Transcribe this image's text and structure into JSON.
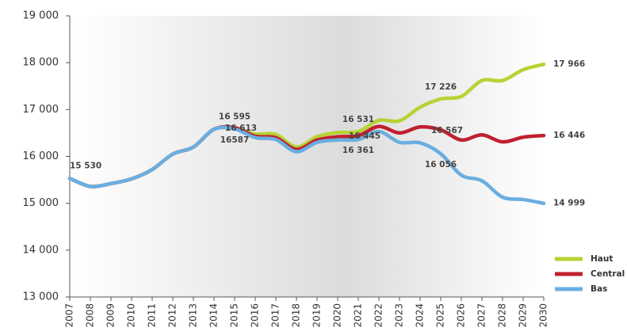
{
  "chart_data": {
    "type": "line",
    "categories": [
      "2007",
      "2008",
      "2009",
      "2010",
      "2011",
      "2012",
      "2013",
      "2014",
      "2015",
      "2016",
      "2017",
      "2018",
      "2019",
      "2020",
      "2021",
      "2022",
      "2023",
      "2024",
      "2025",
      "2026",
      "2027",
      "2028",
      "2029",
      "2030"
    ],
    "ylim": [
      13000,
      19000
    ],
    "yticks": [
      {
        "value": 13000,
        "label": "13 000"
      },
      {
        "value": 14000,
        "label": "14 000"
      },
      {
        "value": 15000,
        "label": "15 000"
      },
      {
        "value": 16000,
        "label": "16 000"
      },
      {
        "value": 17000,
        "label": "17 000"
      },
      {
        "value": 18000,
        "label": "18 000"
      },
      {
        "value": 19000,
        "label": "19 000"
      }
    ],
    "series": [
      {
        "name": "Haut",
        "color": "#b5d334",
        "values": [
          15530,
          15360,
          15420,
          15520,
          15720,
          16050,
          16200,
          16580,
          16595,
          16480,
          16470,
          16200,
          16420,
          16510,
          16531,
          16770,
          16760,
          17050,
          17226,
          17280,
          17620,
          17620,
          17850,
          17966
        ],
        "value_labels": [
          "15 530",
          null,
          null,
          null,
          null,
          null,
          null,
          null,
          "16 595",
          null,
          null,
          null,
          null,
          null,
          "16 531",
          null,
          null,
          null,
          "17 226",
          null,
          null,
          null,
          null,
          "17 966"
        ]
      },
      {
        "name": "Central",
        "color": "#c0202f",
        "values": [
          15530,
          15360,
          15420,
          15520,
          15720,
          16050,
          16200,
          16580,
          16613,
          16430,
          16400,
          16150,
          16350,
          16420,
          16445,
          16640,
          16500,
          16630,
          16567,
          16350,
          16460,
          16310,
          16410,
          16446
        ],
        "value_labels": [
          null,
          null,
          null,
          null,
          null,
          null,
          null,
          null,
          "16 613",
          null,
          null,
          null,
          null,
          null,
          "16 445",
          null,
          null,
          null,
          "16 567",
          null,
          null,
          null,
          null,
          "16 446"
        ]
      },
      {
        "name": "Bas",
        "color": "#6aaee0",
        "values": [
          15530,
          15360,
          15420,
          15520,
          15720,
          16050,
          16200,
          16580,
          16587,
          16400,
          16360,
          16100,
          16300,
          16350,
          16361,
          16530,
          16300,
          16290,
          16056,
          15600,
          15480,
          15130,
          15080,
          14999
        ],
        "value_labels": [
          null,
          null,
          null,
          null,
          null,
          null,
          null,
          null,
          "16587",
          null,
          null,
          null,
          null,
          null,
          "16 361",
          null,
          null,
          null,
          "16 056",
          null,
          null,
          null,
          null,
          "14 999"
        ]
      }
    ]
  }
}
